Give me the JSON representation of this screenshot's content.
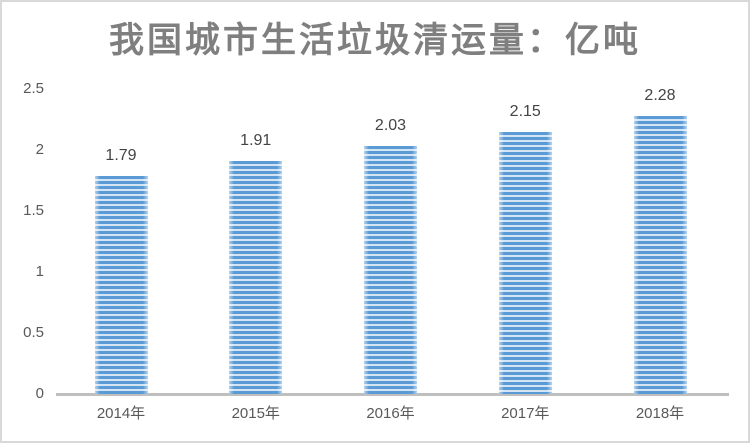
{
  "chart_data": {
    "type": "bar",
    "title": "我国城市生活垃圾清运量：亿吨",
    "categories": [
      "2014年",
      "2015年",
      "2016年",
      "2017年",
      "2018年"
    ],
    "values": [
      1.79,
      1.91,
      2.03,
      2.15,
      2.28
    ],
    "data_labels": [
      "1.79",
      "1.91",
      "2.03",
      "2.15",
      "2.28"
    ],
    "xlabel": "",
    "ylabel": "",
    "ylim": [
      0,
      2.5
    ],
    "ytick_labels": [
      "0",
      "0.5",
      "1",
      "1.5",
      "2",
      "2.5"
    ],
    "yticks": [
      0,
      0.5,
      1,
      1.5,
      2,
      2.5
    ],
    "grid": "off",
    "legend": "none",
    "colors": {
      "bar": "#5B9BD5",
      "bar_stripe": "#D3E5F5",
      "title_text": "#7F7F7F",
      "data_label_text": "#444444",
      "axis_text": "#595959",
      "axis_line": "#BFBFBF",
      "frame_border": "#D9D9D9",
      "background": "#FFFFFF"
    }
  }
}
